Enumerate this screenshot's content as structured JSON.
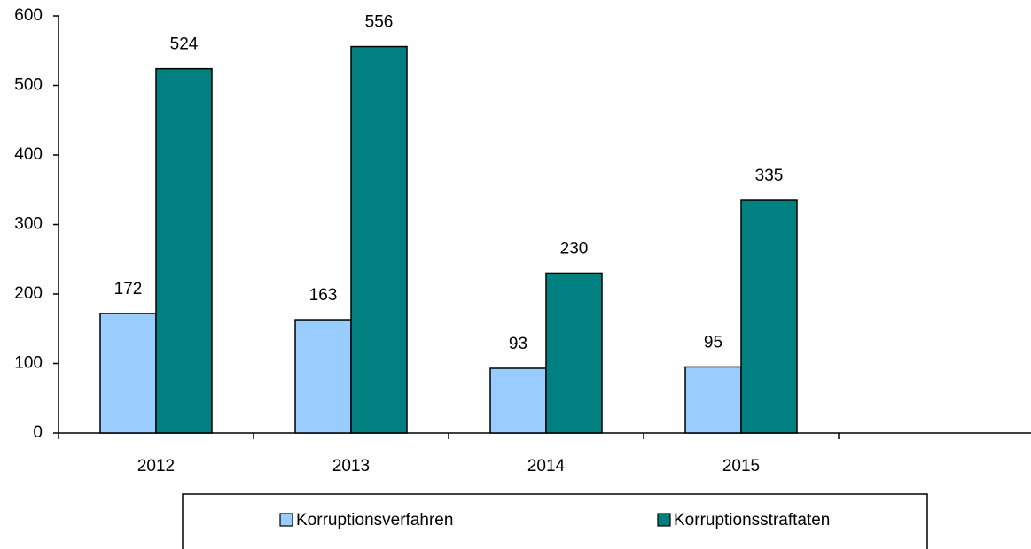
{
  "chart_data": {
    "type": "bar",
    "categories": [
      "2012",
      "2013",
      "2014",
      "2015",
      null
    ],
    "series": [
      {
        "name": "Korruptionsverfahren",
        "color": "#99ccff",
        "values": [
          172,
          163,
          93,
          95,
          null
        ]
      },
      {
        "name": "Korruptionsstraftaten",
        "color": "#008080",
        "values": [
          524,
          556,
          230,
          335,
          null
        ]
      }
    ],
    "ylim": [
      0,
      600
    ],
    "yticks": [
      0,
      100,
      200,
      300,
      400,
      500,
      600
    ],
    "legend": "bottom"
  }
}
